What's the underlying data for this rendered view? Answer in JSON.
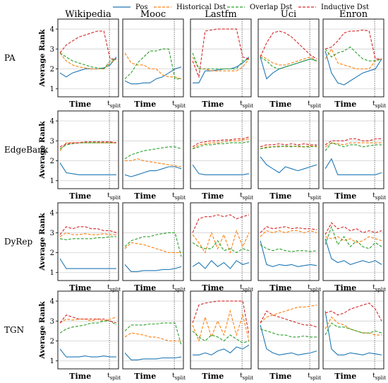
{
  "chart_data": {
    "type": "line",
    "legend": {
      "placement": "top-center",
      "entries": [
        {
          "name": "Pos",
          "color": "#1f77b4",
          "dash": "solid"
        },
        {
          "name": "Historical Dst",
          "color": "#ff7f0e",
          "dash": "dashed"
        },
        {
          "name": "Overlap Dst",
          "color": "#2ca02c",
          "dash": "dashed"
        },
        {
          "name": "Inductive Dst",
          "color": "#d62728",
          "dash": "dashed"
        }
      ]
    },
    "columns": [
      "Wikipedia",
      "Mooc",
      "Lastfm",
      "Uci",
      "Enron"
    ],
    "rows": [
      "PA",
      "EdgeBank",
      "DyRep",
      "TGN"
    ],
    "xlabel": "Time",
    "ylabel": "Average Rank",
    "split_label": "t",
    "split_subscript": "split",
    "split_position": 0.85,
    "y_ticks": [
      1,
      2,
      3,
      4
    ],
    "ylim": [
      0.6,
      4.5
    ],
    "grid": true,
    "panels": [
      [
        {
          "series": [
            [
              1.8,
              1.6,
              1.8,
              1.9,
              2.0,
              2.0,
              2.0,
              2.05,
              2.2,
              2.6
            ],
            [
              2.8,
              2.4,
              2.2,
              2.1,
              2.05,
              2.0,
              2.0,
              2.0,
              2.3,
              2.5
            ],
            [
              2.8,
              2.6,
              2.4,
              2.3,
              2.2,
              2.1,
              2.05,
              2.0,
              2.4,
              2.5
            ],
            [
              2.8,
              3.2,
              3.4,
              3.6,
              3.7,
              3.8,
              3.9,
              3.9,
              2.5,
              2.5
            ]
          ]
        },
        {
          "series": [
            [
              1.4,
              1.25,
              1.25,
              1.3,
              1.3,
              1.5,
              1.6,
              1.8,
              2.0,
              2.1
            ],
            [
              2.8,
              2.3,
              2.2,
              2.2,
              2.0,
              2.0,
              1.7,
              1.6,
              1.6,
              1.5
            ],
            [
              1.5,
              1.8,
              2.3,
              2.6,
              2.9,
              2.9,
              3.0,
              3.0,
              1.5,
              1.5
            ],
            null
          ]
        },
        {
          "series": [
            [
              1.3,
              1.3,
              1.9,
              1.9,
              1.95,
              2.0,
              2.0,
              2.1,
              2.3,
              2.6
            ],
            [
              2.6,
              2.0,
              2.0,
              1.9,
              1.9,
              1.9,
              1.9,
              1.9,
              2.1,
              2.5
            ],
            [
              2.8,
              2.0,
              2.0,
              2.0,
              2.0,
              2.0,
              2.0,
              2.0,
              2.4,
              2.5
            ],
            [
              2.4,
              1.6,
              3.9,
              3.95,
              4.0,
              4.0,
              4.0,
              4.0,
              2.6,
              2.5
            ]
          ]
        },
        {
          "series": [
            [
              2.6,
              1.5,
              1.8,
              2.0,
              2.1,
              2.2,
              2.3,
              2.4,
              2.5,
              2.4
            ],
            [
              2.7,
              2.5,
              2.3,
              2.2,
              2.2,
              2.3,
              2.4,
              2.5,
              2.6,
              2.4
            ],
            [
              2.6,
              2.4,
              2.1,
              2.0,
              2.1,
              2.2,
              2.3,
              2.4,
              2.5,
              2.4
            ],
            [
              2.6,
              3.3,
              3.8,
              3.9,
              3.8,
              3.6,
              3.3,
              3.0,
              2.7,
              2.5
            ]
          ]
        },
        {
          "series": [
            [
              2.9,
              1.8,
              1.3,
              1.2,
              1.4,
              1.6,
              1.8,
              1.9,
              2.0,
              2.5
            ],
            [
              2.5,
              3.0,
              2.3,
              2.2,
              2.1,
              2.0,
              2.0,
              2.0,
              2.4,
              2.5
            ],
            [
              3.0,
              2.6,
              2.8,
              2.9,
              3.1,
              2.8,
              2.5,
              2.4,
              2.4,
              2.5
            ],
            [
              3.0,
              3.1,
              3.4,
              3.8,
              3.9,
              3.9,
              3.95,
              3.9,
              2.5,
              2.5
            ]
          ]
        }
      ],
      [
        {
          "series": [
            [
              1.9,
              1.4,
              1.35,
              1.3,
              1.3,
              1.3,
              1.3,
              1.3,
              1.3,
              1.3
            ],
            [
              2.5,
              2.9,
              2.9,
              2.9,
              2.9,
              2.9,
              2.9,
              2.9,
              2.9,
              2.9
            ],
            [
              2.6,
              2.8,
              2.85,
              2.9,
              2.9,
              2.9,
              2.9,
              2.9,
              2.9,
              2.9
            ],
            [
              2.7,
              2.85,
              2.9,
              2.9,
              2.95,
              2.95,
              2.95,
              2.95,
              2.95,
              2.9
            ]
          ]
        },
        {
          "series": [
            [
              1.3,
              1.2,
              1.3,
              1.4,
              1.5,
              1.5,
              1.6,
              1.7,
              1.7,
              1.6
            ],
            [
              2.0,
              2.0,
              2.1,
              2.0,
              1.95,
              1.9,
              1.85,
              1.8,
              1.75,
              1.7
            ],
            [
              2.1,
              2.3,
              2.4,
              2.5,
              2.55,
              2.6,
              2.65,
              2.7,
              2.7,
              2.6
            ],
            null
          ]
        },
        {
          "series": [
            [
              1.8,
              1.35,
              1.3,
              1.3,
              1.3,
              1.3,
              1.3,
              1.3,
              1.3,
              1.35
            ],
            [
              2.6,
              2.8,
              2.85,
              2.9,
              2.9,
              2.95,
              3.0,
              3.0,
              3.05,
              3.1
            ],
            [
              2.6,
              2.7,
              2.8,
              2.8,
              2.85,
              2.85,
              2.9,
              2.9,
              2.9,
              2.95
            ],
            [
              2.7,
              2.9,
              2.95,
              3.0,
              3.0,
              3.05,
              3.05,
              3.1,
              3.1,
              3.2
            ]
          ]
        },
        {
          "series": [
            [
              2.2,
              1.8,
              1.6,
              1.4,
              1.7,
              1.6,
              1.5,
              1.6,
              1.7,
              1.8
            ],
            [
              2.6,
              2.7,
              2.7,
              2.75,
              2.7,
              2.75,
              2.7,
              2.7,
              2.75,
              2.7
            ],
            [
              2.6,
              2.65,
              2.7,
              2.7,
              2.75,
              2.7,
              2.75,
              2.7,
              2.7,
              2.75
            ],
            [
              2.7,
              2.8,
              2.8,
              2.85,
              2.8,
              2.85,
              2.8,
              2.85,
              2.8,
              2.8
            ]
          ]
        },
        {
          "series": [
            [
              1.6,
              2.1,
              1.3,
              1.3,
              1.3,
              1.3,
              1.3,
              1.3,
              1.3,
              1.4
            ],
            [
              2.7,
              2.9,
              2.85,
              2.8,
              2.9,
              2.9,
              2.9,
              2.9,
              2.9,
              2.9
            ],
            [
              2.5,
              2.9,
              2.8,
              2.7,
              2.8,
              2.8,
              2.7,
              2.75,
              2.8,
              2.8
            ],
            [
              2.8,
              3.0,
              3.0,
              3.0,
              3.1,
              3.1,
              3.0,
              3.0,
              3.1,
              3.1
            ]
          ]
        }
      ],
      [
        {
          "series": [
            [
              1.7,
              1.2,
              1.2,
              1.2,
              1.2,
              1.2,
              1.2,
              1.2,
              1.2,
              1.2
            ],
            [
              2.8,
              3.0,
              2.9,
              2.9,
              2.95,
              2.9,
              2.9,
              2.95,
              2.9,
              2.9
            ],
            [
              2.7,
              2.65,
              2.7,
              2.7,
              2.7,
              2.7,
              2.75,
              2.75,
              2.8,
              2.8
            ],
            [
              2.9,
              3.3,
              3.2,
              3.3,
              3.3,
              3.2,
              3.2,
              3.1,
              3.1,
              3.0
            ]
          ]
        },
        {
          "series": [
            [
              1.4,
              1.05,
              1.05,
              1.1,
              1.1,
              1.1,
              1.15,
              1.15,
              1.2,
              1.3
            ],
            [
              2.2,
              2.5,
              2.45,
              2.4,
              2.3,
              2.2,
              2.1,
              2.0,
              2.0,
              2.0
            ],
            [
              2.3,
              2.6,
              2.7,
              2.8,
              2.8,
              2.9,
              2.95,
              3.0,
              3.0,
              1.8
            ],
            null
          ]
        },
        {
          "series": [
            [
              1.3,
              1.5,
              1.2,
              1.6,
              1.3,
              1.5,
              1.2,
              1.6,
              1.4,
              1.5
            ],
            [
              2.9,
              2.5,
              2.0,
              3.0,
              2.2,
              2.9,
              2.0,
              3.1,
              2.3,
              3.0
            ],
            [
              2.5,
              2.3,
              2.2,
              2.2,
              2.6,
              2.1,
              2.2,
              2.0,
              2.2,
              2.1
            ],
            [
              3.0,
              3.7,
              3.8,
              3.8,
              3.9,
              3.8,
              3.9,
              3.7,
              3.8,
              3.9
            ]
          ]
        },
        {
          "series": [
            [
              2.6,
              1.4,
              1.3,
              1.4,
              1.35,
              1.4,
              1.3,
              1.35,
              1.4,
              1.35
            ],
            [
              2.8,
              3.1,
              3.0,
              3.1,
              3.0,
              3.1,
              3.1,
              3.0,
              3.1,
              3.0
            ],
            [
              2.4,
              2.2,
              2.1,
              2.2,
              2.1,
              2.05,
              2.1,
              2.1,
              2.05,
              2.1
            ],
            [
              3.0,
              3.3,
              3.2,
              3.25,
              3.3,
              3.2,
              3.25,
              3.2,
              3.2,
              3.15
            ]
          ]
        },
        {
          "series": [
            [
              2.7,
              1.7,
              1.5,
              1.6,
              1.4,
              1.5,
              1.6,
              1.5,
              1.6,
              1.4
            ],
            [
              2.8,
              2.7,
              2.8,
              2.6,
              2.7,
              2.5,
              2.6,
              2.8,
              2.7,
              2.6
            ],
            [
              2.4,
              3.3,
              2.4,
              2.8,
              2.3,
              2.6,
              2.3,
              2.2,
              2.5,
              2.3
            ],
            [
              2.9,
              3.5,
              3.2,
              3.3,
              3.1,
              3.2,
              3.0,
              3.1,
              3.0,
              3.1
            ]
          ]
        }
      ],
      [
        {
          "series": [
            [
              1.6,
              1.2,
              1.2,
              1.2,
              1.25,
              1.2,
              1.2,
              1.25,
              1.2,
              1.2
            ],
            [
              2.9,
              3.1,
              3.05,
              3.1,
              3.1,
              3.0,
              3.1,
              3.0,
              3.1,
              3.2
            ],
            [
              2.4,
              2.6,
              2.7,
              2.75,
              2.8,
              2.9,
              2.9,
              3.0,
              3.0,
              2.8
            ],
            [
              2.9,
              3.3,
              3.2,
              3.1,
              3.1,
              3.1,
              3.1,
              3.1,
              3.0,
              2.9
            ]
          ]
        },
        {
          "series": [
            [
              1.4,
              1.05,
              1.05,
              1.1,
              1.1,
              1.1,
              1.15,
              1.15,
              1.15,
              1.2
            ],
            [
              2.2,
              2.4,
              2.35,
              2.3,
              2.2,
              2.2,
              2.1,
              2.0,
              2.0,
              2.0
            ],
            [
              2.5,
              2.8,
              2.8,
              2.8,
              2.85,
              2.85,
              2.9,
              2.9,
              2.9,
              1.8
            ],
            null
          ]
        },
        {
          "series": [
            [
              1.3,
              1.3,
              1.4,
              1.3,
              1.5,
              1.6,
              1.4,
              1.7,
              1.6,
              1.8
            ],
            [
              2.8,
              2.0,
              3.2,
              2.2,
              3.0,
              2.3,
              3.5,
              2.3,
              3.3,
              2.0
            ],
            [
              2.5,
              2.2,
              2.0,
              2.3,
              2.2,
              2.0,
              2.3,
              2.1,
              1.9,
              2.0
            ],
            [
              2.9,
              3.8,
              3.9,
              3.95,
              4.0,
              4.0,
              4.0,
              4.0,
              4.0,
              2.3
            ]
          ]
        },
        {
          "series": [
            [
              2.8,
              1.6,
              1.4,
              1.3,
              1.35,
              1.4,
              1.3,
              1.35,
              1.4,
              1.5
            ],
            [
              2.9,
              3.2,
              3.3,
              3.4,
              3.5,
              3.6,
              3.7,
              3.7,
              3.75,
              3.8
            ],
            [
              2.6,
              2.5,
              2.4,
              2.3,
              2.3,
              2.2,
              2.2,
              2.25,
              2.2,
              2.2
            ],
            [
              2.9,
              3.5,
              3.3,
              3.2,
              3.1,
              3.0,
              2.9,
              2.8,
              2.8,
              2.7
            ]
          ]
        },
        {
          "series": [
            [
              3.5,
              1.6,
              1.3,
              1.3,
              1.4,
              1.35,
              1.3,
              1.4,
              1.35,
              1.3
            ],
            [
              2.6,
              3.2,
              2.9,
              2.8,
              2.6,
              2.5,
              2.4,
              2.4,
              2.3,
              2.3
            ],
            [
              2.3,
              2.9,
              2.7,
              2.7,
              2.6,
              2.5,
              2.4,
              2.4,
              2.5,
              2.4
            ],
            [
              3.4,
              3.5,
              3.3,
              3.4,
              3.6,
              3.7,
              3.8,
              3.9,
              3.6,
              3.0
            ]
          ]
        }
      ]
    ]
  }
}
